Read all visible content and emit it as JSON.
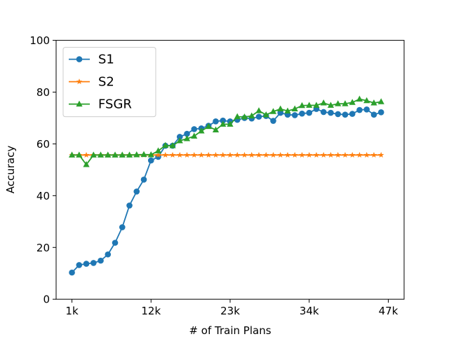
{
  "chart_data": {
    "type": "line",
    "xlabel": "# of Train Plans",
    "ylabel": "Accuracy",
    "categories": [
      "1k",
      null,
      null,
      null,
      null,
      null,
      null,
      null,
      null,
      null,
      null,
      "12k",
      null,
      null,
      null,
      null,
      null,
      null,
      null,
      null,
      null,
      null,
      "23k",
      null,
      null,
      null,
      null,
      null,
      null,
      null,
      null,
      null,
      null,
      "34k",
      null,
      null,
      null,
      null,
      null,
      null,
      null,
      null,
      null,
      null,
      "47k"
    ],
    "series": [
      {
        "name": "S1",
        "color": "#1f77b4",
        "marker": "circle",
        "values": [
          10.3,
          13.2,
          13.7,
          14,
          14.9,
          17.3,
          21.8,
          27.8,
          36.2,
          41.6,
          46.2,
          53.6,
          55,
          59.3,
          59.3,
          62.7,
          63.9,
          65.7,
          66,
          67,
          68.7,
          69,
          68.7,
          69.3,
          70,
          69.8,
          70.5,
          70.8,
          68.9,
          72,
          71.3,
          71.1,
          71.7,
          72,
          73.5,
          72.3,
          72,
          71.5,
          71.3,
          71.6,
          73.1,
          73.3,
          71.3,
          72.2,
          null
        ]
      },
      {
        "name": "S2",
        "color": "#ff7f0e",
        "marker": "star",
        "values": [
          55.7,
          55.7,
          55.7,
          55.7,
          55.7,
          55.7,
          55.7,
          55.7,
          55.7,
          55.7,
          55.7,
          55.7,
          55.7,
          55.7,
          55.7,
          55.7,
          55.7,
          55.7,
          55.7,
          55.7,
          55.7,
          55.7,
          55.7,
          55.7,
          55.7,
          55.7,
          55.7,
          55.7,
          55.7,
          55.7,
          55.7,
          55.7,
          55.7,
          55.7,
          55.7,
          55.7,
          55.7,
          55.7,
          55.7,
          55.7,
          55.7,
          55.7,
          55.7,
          55.7,
          null
        ]
      },
      {
        "name": "FSGR",
        "color": "#2ca02c",
        "marker": "triangle",
        "values": [
          55.7,
          55.7,
          52,
          55.7,
          55.7,
          55.7,
          55.7,
          55.7,
          55.7,
          55.8,
          55.9,
          55.8,
          57.3,
          59.4,
          59.3,
          61.2,
          62,
          63,
          65,
          66.7,
          65.4,
          67.6,
          67.6,
          70.5,
          70.4,
          70.8,
          72.8,
          71.2,
          72.5,
          73.5,
          72.7,
          73.5,
          74.8,
          74.9,
          74.9,
          75.8,
          74.9,
          75.5,
          75.5,
          76,
          77.3,
          76.7,
          75.8,
          76.3,
          null
        ]
      }
    ],
    "ylim": [
      0,
      100
    ],
    "yticks": [
      0,
      20,
      40,
      60,
      80,
      100
    ],
    "legend": "upper left",
    "grid": false
  }
}
